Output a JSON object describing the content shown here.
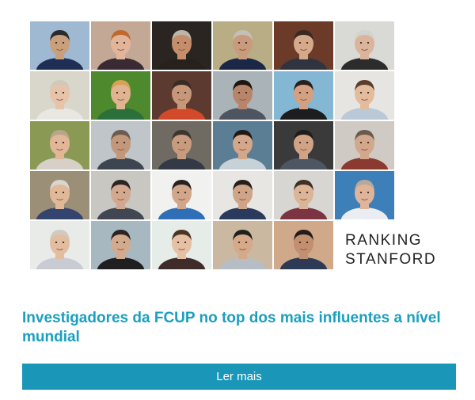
{
  "banner": {
    "image_alt": "Mosaic of FCUP researcher portraits",
    "ranking_line1": "RANKING",
    "ranking_line2": "STANFORD",
    "portraits": [
      {
        "bg": "#9fb9d3",
        "skin": "#c9a07c",
        "hair": "#2b2b2b",
        "shirt": "#1f2e55"
      },
      {
        "bg": "#c3a896",
        "skin": "#e2b59a",
        "hair": "#c0692d",
        "shirt": "#3a2a33"
      },
      {
        "bg": "#2a2520",
        "skin": "#c58d6c",
        "hair": "#bdb5aa",
        "shirt": "#26211d"
      },
      {
        "bg": "#b9ad86",
        "skin": "#c79b7b",
        "hair": "#c4c0b8",
        "shirt": "#1b2747"
      },
      {
        "bg": "#6b3a28",
        "skin": "#d5a98a",
        "hair": "#3a2a22",
        "shirt": "#2f3440"
      },
      {
        "bg": "#d9d9d6",
        "skin": "#dbb59b",
        "hair": "#d2d2d0",
        "shirt": "#2c2c2c"
      },
      {
        "bg": "#d9d6cc",
        "skin": "#e7c4a9",
        "hair": "#cfc9b8",
        "shirt": "#e9e7e2"
      },
      {
        "bg": "#4e8a2d",
        "skin": "#e0b391",
        "hair": "#d6a256",
        "shirt": "#2b6f3a"
      },
      {
        "bg": "#5c3a30",
        "skin": "#c7977a",
        "hair": "#3a2b25",
        "shirt": "#d24a2a"
      },
      {
        "bg": "#aab4b8",
        "skin": "#b8846a",
        "hair": "#1d1712",
        "shirt": "#4f5560"
      },
      {
        "bg": "#83b7d4",
        "skin": "#d3a182",
        "hair": "#2a2019",
        "shirt": "#1d1d1f"
      },
      {
        "bg": "#e6e5e1",
        "skin": "#e3bb9d",
        "hair": "#5a3e2b",
        "shirt": "#b9c9d8"
      },
      {
        "bg": "#8a9a55",
        "skin": "#e2b797",
        "hair": "#b9a588",
        "shirt": "#d6d0c6"
      },
      {
        "bg": "#bfc5c8",
        "skin": "#c2977a",
        "hair": "#6a5c52",
        "shirt": "#3d4550"
      },
      {
        "bg": "#6f6a62",
        "skin": "#c89b7e",
        "hair": "#3c3631",
        "shirt": "#343a45"
      },
      {
        "bg": "#5c7e95",
        "skin": "#d4a68a",
        "hair": "#1f1a16",
        "shirt": "#c7d1d8"
      },
      {
        "bg": "#3a3a3a",
        "skin": "#d0a386",
        "hair": "#201c18",
        "shirt": "#4e5563"
      },
      {
        "bg": "#cfcac3",
        "skin": "#d2a88d",
        "hair": "#6b5a4c",
        "shirt": "#8a3a2f"
      },
      {
        "bg": "#9b8f78",
        "skin": "#e1b999",
        "hair": "#d9d6d0",
        "shirt": "#33456e"
      },
      {
        "bg": "#c9c7c1",
        "skin": "#d2a98f",
        "hair": "#2c2622",
        "shirt": "#404652"
      },
      {
        "bg": "#f1f1ef",
        "skin": "#d1a689",
        "hair": "#272220",
        "shirt": "#2f6fb8"
      },
      {
        "bg": "#e7e6e3",
        "skin": "#cfa487",
        "hair": "#241f1b",
        "shirt": "#2a3a5c"
      },
      {
        "bg": "#d7d6d3",
        "skin": "#dcb496",
        "hair": "#3f2f25",
        "shirt": "#7c3442"
      },
      {
        "bg": "#3d7fb8",
        "skin": "#e0b49a",
        "hair": "#b8aa9b",
        "shirt": "#eaeef3"
      },
      {
        "bg": "#e9ebe8",
        "skin": "#e3bd9f",
        "hair": "#d0cbc2",
        "shirt": "#c8ccd2"
      },
      {
        "bg": "#a7b8c0",
        "skin": "#d4aa8e",
        "hair": "#2c2420",
        "shirt": "#1f1f22"
      },
      {
        "bg": "#e6ece7",
        "skin": "#e6c0a5",
        "hair": "#4b3426",
        "shirt": "#3f2c2a"
      },
      {
        "bg": "#cab9a0",
        "skin": "#d6a98a",
        "hair": "#22201f",
        "shirt": "#b7bdc4"
      },
      {
        "bg": "#cfa98a",
        "skin": "#c28f70",
        "hair": "#241d1a",
        "shirt": "#2c3a55"
      }
    ]
  },
  "article": {
    "title": "Investigadores da FCUP no top dos mais influentes a nível mundial",
    "read_more_label": "Ler mais"
  },
  "colors": {
    "accent": "#1a9fc0",
    "button_bg": "#1996b8",
    "button_text": "#ffffff",
    "ranking_text": "#222222"
  }
}
